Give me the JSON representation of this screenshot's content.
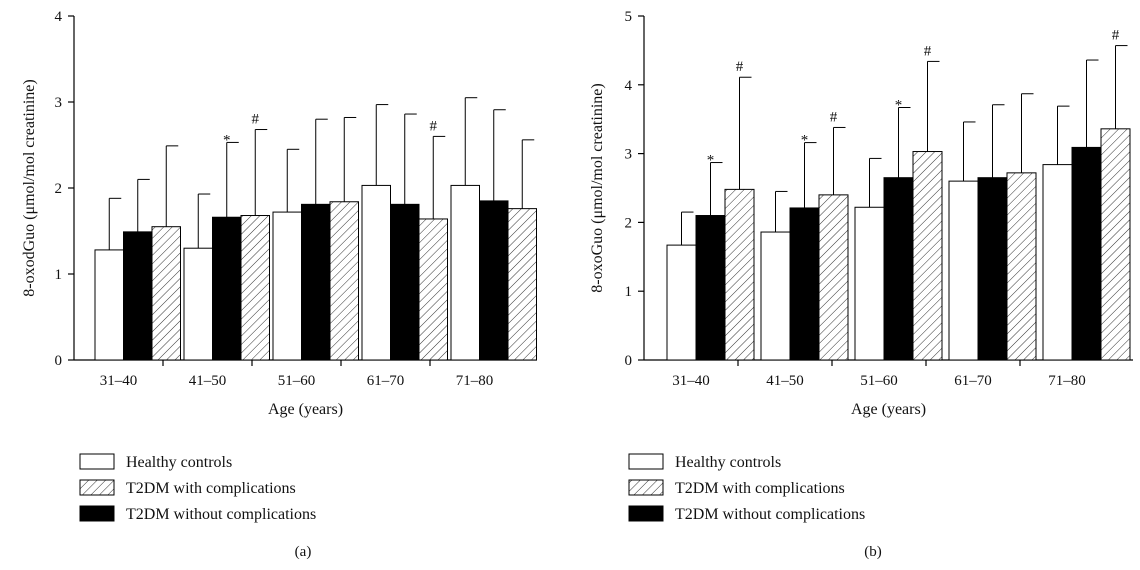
{
  "legend": [
    {
      "key": "healthy",
      "label": "Healthy controls",
      "fill": "white"
    },
    {
      "key": "with",
      "label": "T2DM with complications",
      "fill": "hatch"
    },
    {
      "key": "without",
      "label": "T2DM without complications",
      "fill": "black"
    }
  ],
  "chart_data": [
    {
      "type": "bar",
      "panel_label": "(a)",
      "xlabel": "Age (years)",
      "ylabel": "8-oxodGuo (μmol/mol creatinine)",
      "ylim": [
        0,
        4
      ],
      "yticks": [
        0,
        1,
        2,
        3,
        4
      ],
      "categories": [
        "31–40",
        "41–50",
        "51–60",
        "61–70",
        "71–80"
      ],
      "series": [
        {
          "name": "Healthy controls",
          "fill": "white",
          "values": [
            1.28,
            1.3,
            1.72,
            2.03,
            2.03
          ],
          "err_upper": [
            1.88,
            1.93,
            2.45,
            2.97,
            3.05
          ],
          "markers": [
            "",
            "",
            "",
            "",
            ""
          ]
        },
        {
          "name": "T2DM without complications",
          "fill": "black",
          "values": [
            1.49,
            1.66,
            1.81,
            1.81,
            1.85
          ],
          "err_upper": [
            2.1,
            2.53,
            2.8,
            2.86,
            2.91
          ],
          "markers": [
            "",
            "*",
            "",
            "",
            ""
          ]
        },
        {
          "name": "T2DM with complications",
          "fill": "hatch",
          "values": [
            1.55,
            1.68,
            1.84,
            1.64,
            1.76
          ],
          "err_upper": [
            2.49,
            2.68,
            2.82,
            2.6,
            2.56
          ],
          "markers": [
            "",
            "#",
            "",
            "#",
            ""
          ]
        }
      ]
    },
    {
      "type": "bar",
      "panel_label": "(b)",
      "xlabel": "Age (years)",
      "ylabel": "8-oxoGuo (μmol/mol creatinine)",
      "ylim": [
        0,
        5
      ],
      "yticks": [
        0,
        1,
        2,
        3,
        4,
        5
      ],
      "categories": [
        "31–40",
        "41–50",
        "51–60",
        "61–70",
        "71–80"
      ],
      "series": [
        {
          "name": "Healthy controls",
          "fill": "white",
          "values": [
            1.67,
            1.86,
            2.22,
            2.6,
            2.84
          ],
          "err_upper": [
            2.15,
            2.45,
            2.93,
            3.46,
            3.69
          ],
          "markers": [
            "",
            "",
            "",
            "",
            ""
          ]
        },
        {
          "name": "T2DM without complications",
          "fill": "black",
          "values": [
            2.1,
            2.21,
            2.65,
            2.65,
            3.09
          ],
          "err_upper": [
            2.87,
            3.16,
            3.67,
            3.71,
            4.36
          ],
          "markers": [
            "*",
            "*",
            "*",
            "",
            ""
          ]
        },
        {
          "name": "T2DM with complications",
          "fill": "hatch",
          "values": [
            2.48,
            2.4,
            3.03,
            2.72,
            3.36
          ],
          "err_upper": [
            4.11,
            3.38,
            4.34,
            3.87,
            4.57
          ],
          "markers": [
            "#",
            "#",
            "#",
            "",
            "#"
          ]
        }
      ]
    }
  ]
}
